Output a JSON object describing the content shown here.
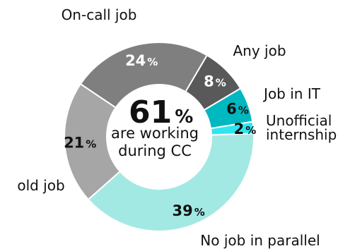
{
  "chart_data": {
    "type": "pie",
    "variant": "donut",
    "center_text": {
      "value": "61",
      "unit": "%",
      "line1": "are working",
      "line2": "during CC"
    },
    "slices": [
      {
        "label": "No job in parallel",
        "value": 39,
        "color": "#a3e9e3",
        "text_color": "#111111"
      },
      {
        "label": "old job",
        "value": 21,
        "color": "#a6a6a6",
        "text_color": "#111111"
      },
      {
        "label": "On-call job",
        "value": 24,
        "color": "#7f7f7f",
        "text_color": "#ffffff"
      },
      {
        "label": "Any job",
        "value": 8,
        "color": "#595959",
        "text_color": "#ffffff"
      },
      {
        "label": "Job in IT",
        "value": 6,
        "color": "#00b8bf",
        "text_color": "#111111"
      },
      {
        "label": "Unofficial internship",
        "value": 2,
        "color": "#2ee6ef",
        "text_color": "#111111"
      }
    ],
    "value_suffix": "%"
  }
}
